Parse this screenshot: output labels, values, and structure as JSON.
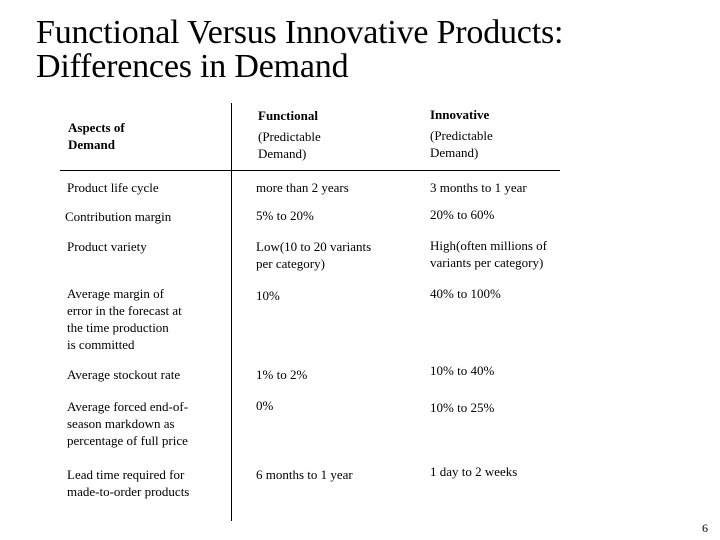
{
  "title": {
    "line1": "Functional Versus Innovative Products:",
    "line2": "Differences in Demand"
  },
  "header": {
    "aspects": [
      "Aspects of",
      "Demand"
    ],
    "functional": {
      "label": "Functional",
      "sub": [
        "(Predictable",
        "Demand)"
      ]
    },
    "innovative": {
      "label": "Innovative",
      "sub": [
        "(Predictable",
        "Demand)"
      ]
    }
  },
  "rows": [
    {
      "aspect": [
        "Product life cycle"
      ],
      "functional": [
        "more than 2 years"
      ],
      "innovative": [
        "3 months to 1 year"
      ]
    },
    {
      "aspect": [
        "Contribution margin"
      ],
      "functional": [
        "5% to 20%"
      ],
      "innovative": [
        "20% to 60%"
      ]
    },
    {
      "aspect": [
        "Product variety"
      ],
      "functional": [
        "Low(10 to 20 variants",
        "per category)"
      ],
      "innovative": [
        "High(often millions of",
        "variants per category)"
      ]
    },
    {
      "aspect": [
        "Average margin of",
        "error in the forecast at",
        "the time production",
        "is committed"
      ],
      "functional": [
        "10%"
      ],
      "innovative": [
        "40% to 100%"
      ]
    },
    {
      "aspect": [
        "Average stockout rate"
      ],
      "functional": [
        "1% to 2%"
      ],
      "innovative": [
        "10% to 40%"
      ]
    },
    {
      "aspect": [
        "Average forced end-of-",
        "season markdown as",
        "percentage of full price"
      ],
      "functional": [
        "0%"
      ],
      "innovative": [
        "10% to 25%"
      ]
    },
    {
      "aspect": [
        "Lead time required for",
        "made-to-order products"
      ],
      "functional": [
        "6 months to 1 year"
      ],
      "innovative": [
        "1 day to 2 weeks"
      ]
    }
  ],
  "page_number": "6"
}
